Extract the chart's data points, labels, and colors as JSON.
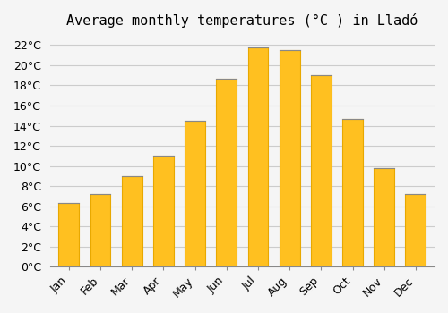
{
  "title": "Average monthly temperatures (°C ) in Lladó",
  "months": [
    "Jan",
    "Feb",
    "Mar",
    "Apr",
    "May",
    "Jun",
    "Jul",
    "Aug",
    "Sep",
    "Oct",
    "Nov",
    "Dec"
  ],
  "values": [
    6.3,
    7.2,
    9.0,
    11.0,
    14.5,
    18.7,
    21.8,
    21.5,
    19.0,
    14.7,
    9.8,
    7.2
  ],
  "bar_color_main": "#FFC020",
  "bar_color_edge": "#E8A800",
  "ylim": [
    0,
    23
  ],
  "ytick_step": 2,
  "background_color": "#f5f5f5",
  "grid_color": "#cccccc",
  "title_fontsize": 11,
  "tick_fontsize": 9
}
